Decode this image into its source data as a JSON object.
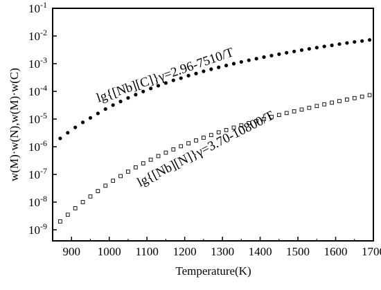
{
  "chart_data": {
    "type": "scatter",
    "title": "",
    "xlabel": "Temperature(K)",
    "ylabel": "w(M)·w(N),w(M)·w(C)",
    "xlim": [
      850,
      1700
    ],
    "ylim_log10": [
      -9.4,
      -1
    ],
    "y_scale": "log",
    "x_ticks": [
      900,
      1000,
      1100,
      1200,
      1300,
      1400,
      1500,
      1600,
      1700
    ],
    "y_ticks": [
      {
        "base": "10",
        "exp": "-9",
        "value": 1e-09
      },
      {
        "base": "10",
        "exp": "-8",
        "value": 1e-08
      },
      {
        "base": "10",
        "exp": "-7",
        "value": 1e-07
      },
      {
        "base": "10",
        "exp": "-6",
        "value": 1e-06
      },
      {
        "base": "10",
        "exp": "-5",
        "value": 1e-05
      },
      {
        "base": "10",
        "exp": "-4",
        "value": 0.0001
      },
      {
        "base": "10",
        "exp": "-3",
        "value": 0.001
      },
      {
        "base": "10",
        "exp": "-2",
        "value": 0.01
      },
      {
        "base": "10",
        "exp": "-1",
        "value": 0.1
      }
    ],
    "grid": false,
    "series": [
      {
        "marker": "filled-circle",
        "color": "#000000",
        "x": [
          870,
          890,
          910,
          930,
          950,
          970,
          990,
          1010,
          1030,
          1050,
          1070,
          1090,
          1110,
          1130,
          1150,
          1170,
          1190,
          1210,
          1230,
          1250,
          1270,
          1290,
          1310,
          1330,
          1350,
          1370,
          1390,
          1410,
          1430,
          1450,
          1470,
          1490,
          1510,
          1530,
          1550,
          1570,
          1590,
          1610,
          1630,
          1650,
          1670,
          1690
        ],
        "y": [
          2e-06,
          3.2e-06,
          5e-06,
          7.6e-06,
          1.1e-05,
          1.6e-05,
          2.3e-05,
          3.2e-05,
          4.3e-05,
          5.8e-05,
          7.6e-05,
          9.9e-05,
          0.000127,
          0.00016,
          0.0002,
          0.00025,
          0.0003,
          0.00037,
          0.00044,
          0.00053,
          0.00063,
          0.00074,
          0.00086,
          0.001,
          0.00116,
          0.00133,
          0.00152,
          0.00173,
          0.00196,
          0.00221,
          0.00248,
          0.00277,
          0.00309,
          0.00343,
          0.0038,
          0.0042,
          0.0046,
          0.0051,
          0.0056,
          0.0061,
          0.0066,
          0.0072
        ]
      },
      {
        "marker": "open-square",
        "color": "#000000",
        "x": [
          870,
          890,
          910,
          930,
          950,
          970,
          990,
          1010,
          1030,
          1050,
          1070,
          1090,
          1110,
          1130,
          1150,
          1170,
          1190,
          1210,
          1230,
          1250,
          1270,
          1290,
          1310,
          1330,
          1350,
          1370,
          1390,
          1410,
          1430,
          1450,
          1470,
          1490,
          1510,
          1530,
          1550,
          1570,
          1590,
          1610,
          1630,
          1650,
          1670,
          1690
        ],
        "y": [
          2e-09,
          3.5e-09,
          6e-09,
          1e-08,
          1.6e-08,
          2.5e-08,
          3.9e-08,
          5.9e-08,
          8.7e-08,
          1.26e-07,
          1.8e-07,
          2.5e-07,
          3.4e-07,
          4.6e-07,
          6.1e-07,
          8e-07,
          1.04e-06,
          1.33e-06,
          1.69e-06,
          2.12e-06,
          2.64e-06,
          3.3e-06,
          4e-06,
          4.9e-06,
          5.9e-06,
          7.1e-06,
          8.5e-06,
          1e-05,
          1.2e-05,
          1.4e-05,
          1.65e-05,
          1.9e-05,
          2.2e-05,
          2.55e-05,
          2.95e-05,
          3.4e-05,
          3.9e-05,
          4.45e-05,
          5.05e-05,
          5.7e-05,
          6.45e-05,
          7.3e-05
        ]
      }
    ],
    "annotations": [
      {
        "text": "lg{[Nb][C]}γ=2.96-7510/T"
      },
      {
        "text": "lg{[Nb][N]}γ=3.70-10800/T"
      }
    ]
  }
}
